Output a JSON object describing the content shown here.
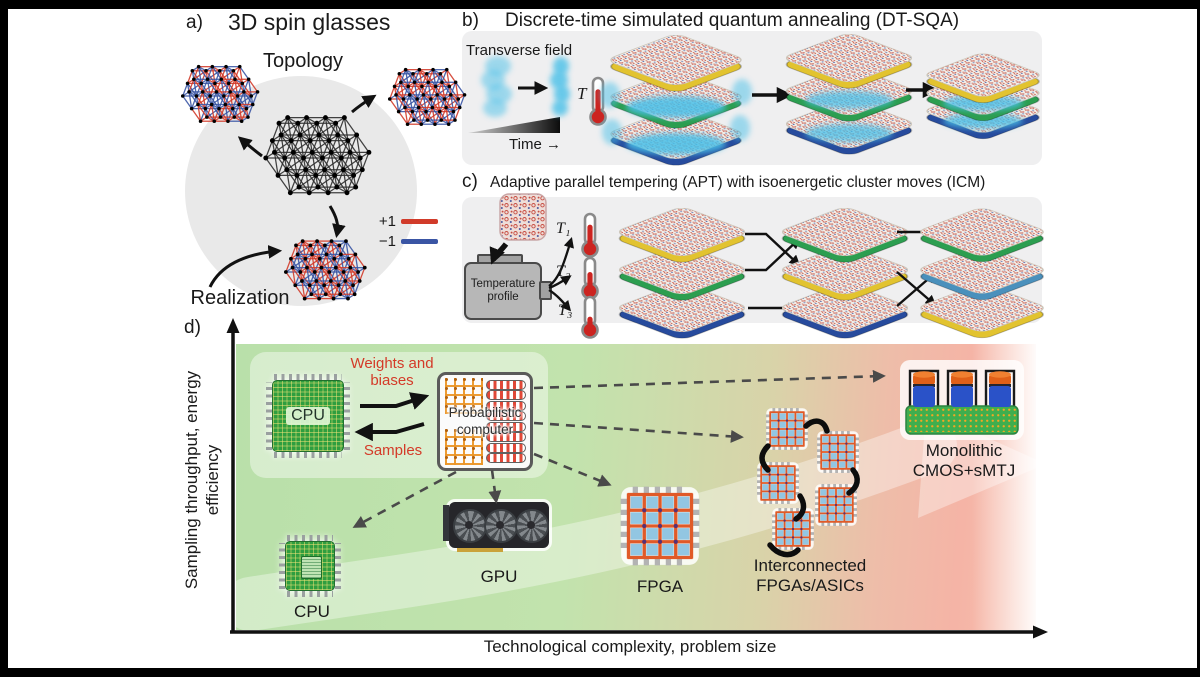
{
  "colors": {
    "spin_up": "#d13b2a",
    "spin_down": "#3a55a4",
    "lattice_black": "#2d2d2d",
    "plate_yellow": "#e2c32f",
    "plate_green": "#2c9e50",
    "plate_blue": "#274b9d",
    "plate_teal": "#4a90bc",
    "fuzz_blue": "#49c0e8",
    "thermo_red": "#cc2420",
    "accent_red_text": "#d43a28",
    "panel_bg_gray": "#efeff0",
    "d_bg_green": "#b7dfa8",
    "d_bg_red": "#f5b3a5",
    "fpga_orange": "#e05a28",
    "fpga_cell_blue": "#92c6e2",
    "board_green": "#3fae4e",
    "smtj_cap_orange": "#e06018",
    "smtj_body_blue": "#2a52c8"
  },
  "panel_a": {
    "label": "a)",
    "title": "3D spin glasses",
    "topology": "Topology",
    "realization": "Realization",
    "legend": {
      "up_label": "+1",
      "down_label": "−1"
    }
  },
  "panel_b": {
    "label": "b)",
    "title": "Discrete-time simulated quantum annealing (DT-SQA)",
    "transverse_field": "Transverse field",
    "time_axis": "Time →",
    "temperature_symbol": "T"
  },
  "panel_c": {
    "label": "c)",
    "title": "Adaptive parallel tempering (APT) with isoenergetic cluster moves (ICM)",
    "device_label": "Temperature profile",
    "t1": "T₁",
    "t2": "T₂",
    "t3": "T₃"
  },
  "panel_d": {
    "label": "d)",
    "y_axis": "Sampling throughput, energy efficiency",
    "x_axis": "Technological complexity, problem size",
    "weights_biases": "Weights and biases",
    "samples": "Samples",
    "cpu_host": "CPU",
    "probabilistic_computer": "Probabilistic computer",
    "hardware": {
      "cpu": "CPU",
      "gpu": "GPU",
      "fpga": "FPGA",
      "interconnected": "Interconnected FPGAs/ASICs",
      "monolithic": "Monolithic CMOS+sMTJ"
    }
  }
}
